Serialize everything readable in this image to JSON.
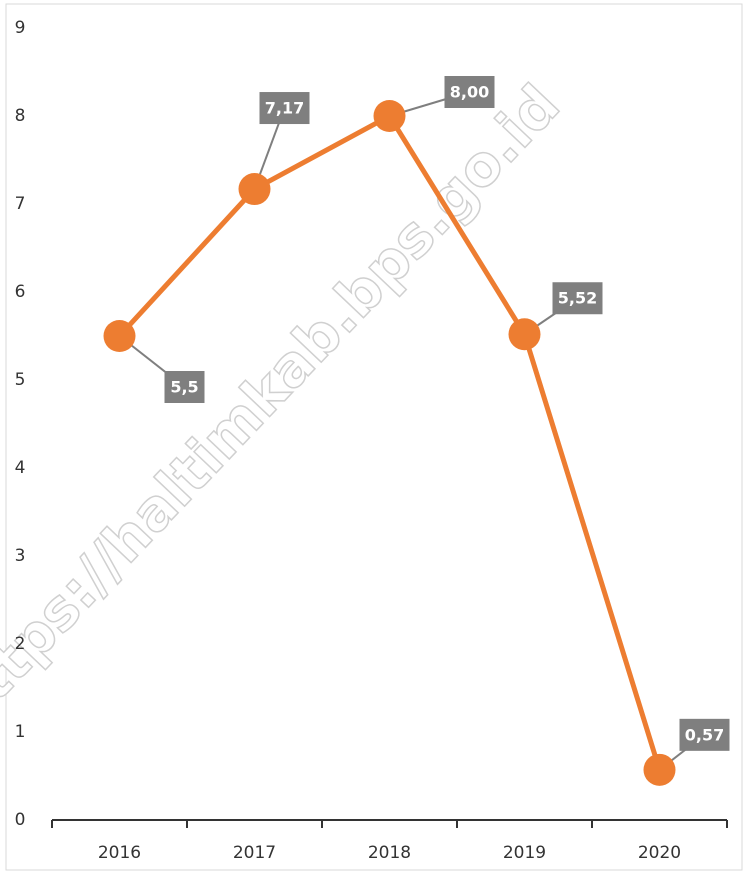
{
  "chart_data": {
    "type": "line",
    "watermark": "https://haltimkab.bps.go.id",
    "categories": [
      "2016",
      "2017",
      "2018",
      "2019",
      "2020"
    ],
    "series": [
      {
        "color": "#ED7D31",
        "values": [
          5.5,
          7.17,
          8.0,
          5.52,
          0.57
        ],
        "value_labels": [
          "5,5",
          "7,17",
          "8,00",
          "5,52",
          "0,57"
        ]
      }
    ],
    "ylim": [
      0,
      9
    ],
    "yticks": [
      0,
      1,
      2,
      3,
      4,
      5,
      6,
      7,
      8,
      9
    ],
    "grid": false
  }
}
